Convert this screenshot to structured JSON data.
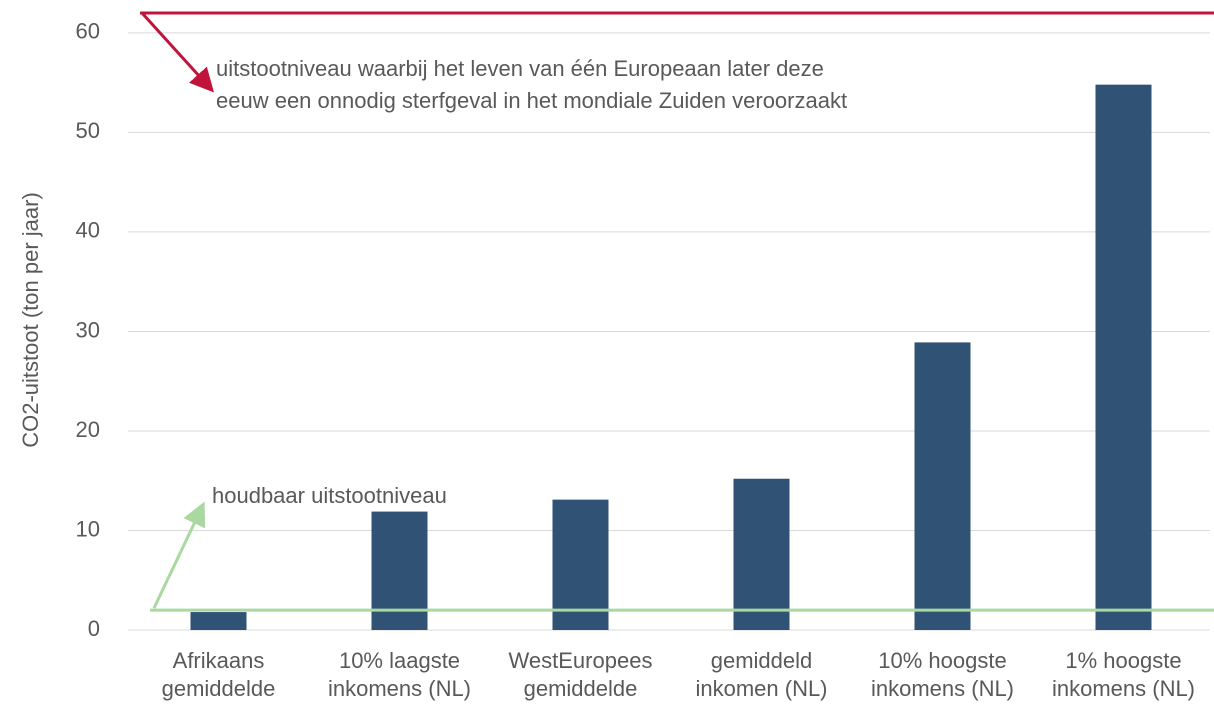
{
  "chart_data": {
    "type": "bar",
    "y_label": "CO2-uitstoot  (ton per jaar)",
    "categories": [
      "Afrikaans\ngemiddelde",
      "10% laagste\ninkomens (NL)",
      "WestEuropees\ngemiddelde",
      "gemiddeld\ninkomen (NL)",
      "10% hoogste\ninkomens (NL)",
      "1% hoogste\ninkomens (NL)"
    ],
    "values": [
      1.8,
      11.9,
      13.1,
      15.2,
      28.9,
      54.8
    ],
    "color": "#2f5275",
    "ylim": [
      0,
      62
    ],
    "yticks": [
      0,
      10,
      20,
      30,
      40,
      50,
      60
    ],
    "grid": true,
    "reference_lines": [
      {
        "value": 62,
        "color": "#c0143c",
        "label": "uitstootniveau waarbij het leven van één Europeaan later deze\neeuw een onnodig sterfgeval in het mondiale Zuiden veroorzaakt"
      },
      {
        "value": 2,
        "color": "#a9d8a0",
        "label": "houdbaar uitstootniveau"
      }
    ]
  }
}
